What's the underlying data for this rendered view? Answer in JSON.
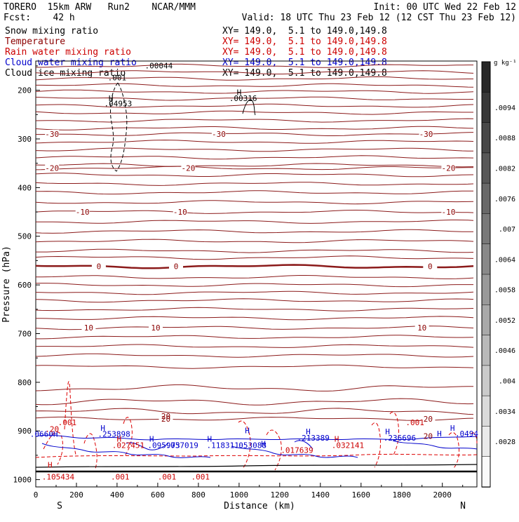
{
  "header": {
    "left_line1": "TORERO  15km ARW   Run2    NCAR/MMM",
    "left_line2": "Fcst:    42 h",
    "right_line1": "Init: 00 UTC Wed 22 Feb 12",
    "right_line2": "Valid: 18 UTC Thu 23 Feb 12 (12 CST Thu 23 Feb 12)"
  },
  "legend": [
    {
      "label": "Snow mixing ratio",
      "range": "XY= 149.0,  5.1 to 149.0,149.8",
      "color": "#000000"
    },
    {
      "label": "Temperature",
      "range": "XY= 149.0,  5.1 to 149.0,149.8",
      "color": "#8b0000"
    },
    {
      "label": "Rain water mixing ratio",
      "range": "XY= 149.0,  5.1 to 149.0,149.8",
      "color": "#cc0000"
    },
    {
      "label": "Cloud water mixing ratio",
      "range": "XY= 149.0,  5.1 to 149.0,149.8",
      "color": "#0000cc"
    },
    {
      "label": "Cloud ice mixing ratio",
      "range": "XY= 149.0,  5.1 to 149.0,149.8",
      "color": "#000000"
    }
  ],
  "chart_data": {
    "type": "cross-section contour",
    "xlabel": "Distance (km)",
    "ylabel": "Pressure (hPa)",
    "xlim": [
      0,
      2170
    ],
    "ylim": [
      1015,
      140
    ],
    "x_ticks": [
      "0",
      "200",
      "400",
      "600",
      "800",
      "1000",
      "1200",
      "1400",
      "1600",
      "1800",
      "2000"
    ],
    "y_ticks": [
      "200",
      "300",
      "400",
      "500",
      "600",
      "700",
      "800",
      "900",
      "1000"
    ],
    "endpoints": {
      "left": "S",
      "right": "N"
    },
    "colorbar": {
      "unit": "g kg⁻¹",
      "labels": [
        ".0094",
        ".0088",
        ".0082",
        ".0076",
        ".007",
        ".0064",
        ".0058",
        ".0052",
        ".0046",
        ".004",
        ".0034",
        ".0028"
      ]
    },
    "temperature_levels": [
      {
        "value": "-30",
        "pressure": 290,
        "labels_km": [
          80,
          900,
          1920
        ]
      },
      {
        "value": "-20",
        "pressure": 360,
        "labels_km": [
          80,
          750,
          2030
        ]
      },
      {
        "value": "-10",
        "pressure": 450,
        "labels_km": [
          230,
          710,
          2030
        ]
      },
      {
        "value": "0",
        "pressure": 562,
        "labels_km": [
          310,
          690,
          1940
        ]
      },
      {
        "value": "10",
        "pressure": 688,
        "labels_km": [
          260,
          590,
          1900
        ]
      },
      {
        "value": "20",
        "pressure": 875,
        "labels_km": [
          640,
          1930
        ]
      }
    ],
    "annotations": [
      {
        "text": ".00044",
        "km": 605,
        "p": 155,
        "color": "#000000"
      },
      {
        "text": ".001",
        "km": 400,
        "p": 180,
        "color": "#000000"
      },
      {
        "text": "H",
        "km": 370,
        "p": 222,
        "color": "#000000"
      },
      {
        "text": ".04953",
        "km": 405,
        "p": 233,
        "color": "#000000"
      },
      {
        "text": "H",
        "km": 1000,
        "p": 210,
        "color": "#000000"
      },
      {
        "text": ".00316",
        "km": 1020,
        "p": 222,
        "color": "#000000"
      },
      {
        "text": ".001",
        "km": 155,
        "p": 888,
        "color": "#cc0000"
      },
      {
        "text": ".001",
        "km": 1865,
        "p": 888,
        "color": "#cc0000"
      },
      {
        "text": "H",
        "km": 330,
        "p": 900,
        "color": "#0000cc"
      },
      {
        "text": ".253898",
        "km": 385,
        "p": 912,
        "color": "#0000cc"
      },
      {
        "text": "20",
        "km": 640,
        "p": 875,
        "color": "#8b0000"
      },
      {
        "text": "H",
        "km": 1040,
        "p": 905,
        "color": "#0000cc"
      },
      {
        "text": "H",
        "km": 1340,
        "p": 907,
        "color": "#0000cc"
      },
      {
        "text": "H",
        "km": 1730,
        "p": 907,
        "color": "#0000cc"
      },
      {
        "text": "H",
        "km": 2050,
        "p": 900,
        "color": "#0000cc"
      },
      {
        "text": ".213389",
        "km": 1365,
        "p": 920,
        "color": "#0000cc"
      },
      {
        "text": ".236696",
        "km": 1790,
        "p": 920,
        "color": "#0000cc"
      },
      {
        "text": "20",
        "km": 1930,
        "p": 916,
        "color": "#8b0000"
      },
      {
        "text": "H",
        "km": 410,
        "p": 922,
        "color": "#cc0000"
      },
      {
        "text": ".027451",
        "km": 455,
        "p": 935,
        "color": "#cc0000"
      },
      {
        "text": "H",
        "km": 570,
        "p": 922,
        "color": "#0000cc"
      },
      {
        "text": ".095973",
        "km": 630,
        "p": 935,
        "color": "#0000cc"
      },
      {
        "text": ".057019",
        "km": 720,
        "p": 935,
        "color": "#0000cc"
      },
      {
        "text": "H",
        "km": 855,
        "p": 922,
        "color": "#0000cc"
      },
      {
        "text": ".118311",
        "km": 920,
        "p": 935,
        "color": "#0000cc"
      },
      {
        "text": ".053088",
        "km": 1055,
        "p": 935,
        "color": "#0000cc"
      },
      {
        "text": "H",
        "km": 1120,
        "p": 932,
        "color": "#0000cc"
      },
      {
        "text": ".017639",
        "km": 1285,
        "p": 945,
        "color": "#cc0000"
      },
      {
        "text": "H",
        "km": 1480,
        "p": 922,
        "color": "#cc0000"
      },
      {
        "text": ".032141",
        "km": 1535,
        "p": 935,
        "color": "#cc0000"
      },
      {
        "text": "H",
        "km": 1985,
        "p": 911,
        "color": "#0000cc"
      },
      {
        "text": ".0494",
        "km": 2120,
        "p": 911,
        "color": "#0000cc"
      },
      {
        "text": ".001",
        "km": 415,
        "p": 1000,
        "color": "#cc0000"
      },
      {
        "text": ".001",
        "km": 645,
        "p": 1000,
        "color": "#cc0000"
      },
      {
        "text": ".001",
        "km": 810,
        "p": 1000,
        "color": "#cc0000"
      },
      {
        "text": "H",
        "km": 70,
        "p": 975,
        "color": "#cc0000"
      },
      {
        "text": ".105434",
        "km": 110,
        "p": 1000,
        "color": "#cc0000"
      },
      {
        "text": ".0660H",
        "km": 40,
        "p": 912,
        "color": "#0000cc"
      },
      {
        "text": ".20",
        "km": 80,
        "p": 902,
        "color": "#cc0000"
      }
    ]
  }
}
